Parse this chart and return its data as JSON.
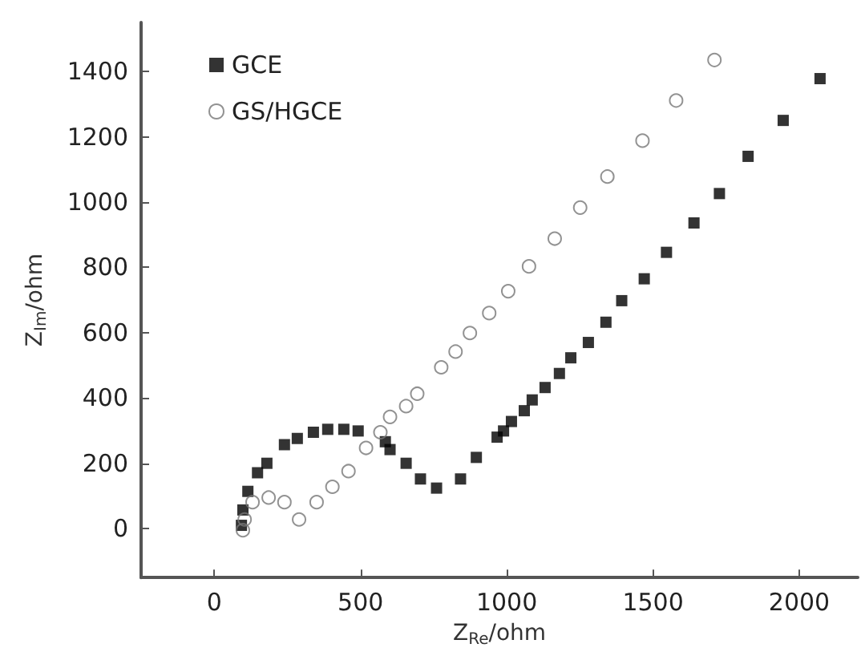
{
  "chart_data": {
    "type": "scatter",
    "xlabel": "Z$_{Re}$/ohm",
    "ylabel": "Z$_{Im}$/ohm",
    "xlim": [
      -250,
      2200
    ],
    "xticks": [
      0,
      500,
      1000,
      1500,
      2000
    ],
    "ylim": [
      -150,
      1550
    ],
    "yticks": [
      0,
      200,
      400,
      600,
      800,
      1000,
      1200,
      1400
    ],
    "grid": false,
    "legend": "top left",
    "series": [
      {
        "name": "GCE",
        "color": "#000000",
        "marker": "square",
        "x": [
          93,
          98,
          115,
          148,
          180,
          240,
          284,
          339,
          388,
          443,
          492,
          585,
          601,
          656,
          705,
          760,
          842,
          896,
          967,
          989,
          1016,
          1060,
          1087,
          1131,
          1180,
          1219,
          1279,
          1339,
          1393,
          1470,
          1546,
          1640,
          1727,
          1825,
          1945,
          2071
        ],
        "values": [
          10,
          57,
          114,
          171,
          200,
          257,
          276,
          295,
          304,
          304,
          299,
          266,
          242,
          200,
          152,
          124,
          152,
          218,
          280,
          299,
          328,
          361,
          394,
          432,
          475,
          523,
          570,
          632,
          698,
          765,
          846,
          936,
          1026,
          1140,
          1250,
          1378
        ]
      },
      {
        "name": "GS/HGCE",
        "color": "#777777",
        "marker": "circle",
        "x": [
          98,
          104,
          131,
          186,
          240,
          290,
          350,
          404,
          459,
          519,
          568,
          601,
          656,
          694,
          776,
          825,
          874,
          940,
          1005,
          1076,
          1164,
          1251,
          1344,
          1464,
          1579,
          1710
        ],
        "values": [
          -5,
          28,
          81,
          95,
          81,
          28,
          81,
          128,
          176,
          247,
          295,
          342,
          375,
          413,
          494,
          542,
          599,
          660,
          727,
          803,
          888,
          983,
          1078,
          1188,
          1311,
          1435
        ]
      }
    ]
  }
}
